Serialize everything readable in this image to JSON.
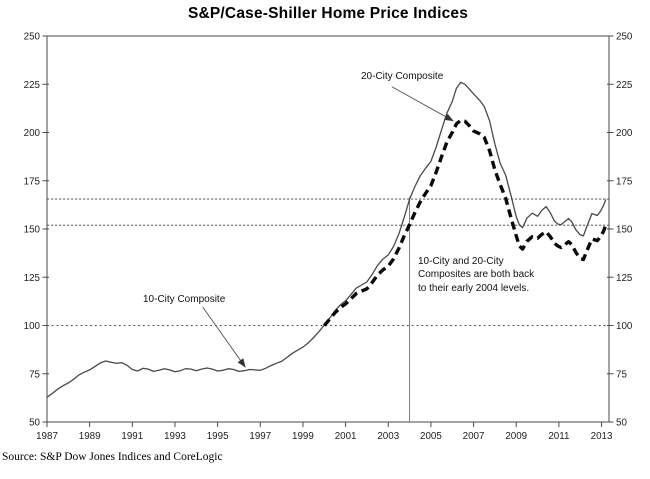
{
  "chart_data": {
    "type": "line",
    "title": "S&P/Case-Shiller Home Price Indices",
    "xlabel": "",
    "ylabel": "",
    "xlim": [
      1987,
      2013.35
    ],
    "ylim": [
      50,
      250
    ],
    "x_ticks": [
      1987,
      1989,
      1991,
      1993,
      1995,
      1997,
      1999,
      2001,
      2003,
      2005,
      2007,
      2009,
      2011,
      2013
    ],
    "y_ticks": [
      50,
      75,
      100,
      125,
      150,
      175,
      200,
      225,
      250
    ],
    "grid": "off",
    "legend": "none (series labeled by arrow annotations)",
    "reference_lines": {
      "horizontal": [
        {
          "y": 100,
          "kind": "dotted"
        },
        {
          "y": 152,
          "kind": "fine-dashed"
        },
        {
          "y": 165.5,
          "kind": "fine-dashed"
        }
      ],
      "vertical": [
        {
          "x": 2004,
          "y_from": 50,
          "y_to": 166.8
        }
      ]
    },
    "series": [
      {
        "name": "10-City Composite",
        "style": "solid",
        "color": "#4a4a4a",
        "width": 1.3,
        "points": [
          [
            1987.0,
            62.8
          ],
          [
            1987.25,
            64.8
          ],
          [
            1987.5,
            67.0
          ],
          [
            1987.75,
            68.8
          ],
          [
            1988.0,
            70.2
          ],
          [
            1988.25,
            72.2
          ],
          [
            1988.5,
            74.4
          ],
          [
            1988.75,
            75.8
          ],
          [
            1989.0,
            77.0
          ],
          [
            1989.25,
            78.8
          ],
          [
            1989.5,
            80.6
          ],
          [
            1989.75,
            81.6
          ],
          [
            1990.0,
            81.0
          ],
          [
            1990.25,
            80.4
          ],
          [
            1990.5,
            80.8
          ],
          [
            1990.75,
            79.4
          ],
          [
            1991.0,
            77.2
          ],
          [
            1991.25,
            76.4
          ],
          [
            1991.5,
            77.8
          ],
          [
            1991.75,
            77.4
          ],
          [
            1992.0,
            76.2
          ],
          [
            1992.25,
            76.8
          ],
          [
            1992.5,
            77.6
          ],
          [
            1992.75,
            77.0
          ],
          [
            1993.0,
            76.0
          ],
          [
            1993.25,
            76.6
          ],
          [
            1993.5,
            77.6
          ],
          [
            1993.75,
            77.4
          ],
          [
            1994.0,
            76.6
          ],
          [
            1994.25,
            77.4
          ],
          [
            1994.5,
            78.0
          ],
          [
            1994.75,
            77.4
          ],
          [
            1995.0,
            76.4
          ],
          [
            1995.25,
            76.8
          ],
          [
            1995.5,
            77.6
          ],
          [
            1995.75,
            77.2
          ],
          [
            1996.0,
            76.2
          ],
          [
            1996.25,
            76.6
          ],
          [
            1996.5,
            77.2
          ],
          [
            1996.75,
            77.0
          ],
          [
            1997.0,
            76.8
          ],
          [
            1997.25,
            77.8
          ],
          [
            1997.5,
            79.2
          ],
          [
            1997.75,
            80.4
          ],
          [
            1998.0,
            81.4
          ],
          [
            1998.25,
            83.4
          ],
          [
            1998.5,
            85.6
          ],
          [
            1998.75,
            87.2
          ],
          [
            1999.0,
            88.8
          ],
          [
            1999.25,
            91.0
          ],
          [
            1999.5,
            93.8
          ],
          [
            1999.75,
            96.8
          ],
          [
            2000.0,
            100.2
          ],
          [
            2000.25,
            103.8
          ],
          [
            2000.5,
            107.6
          ],
          [
            2000.75,
            110.6
          ],
          [
            2001.0,
            112.8
          ],
          [
            2001.25,
            116.0
          ],
          [
            2001.5,
            119.4
          ],
          [
            2001.75,
            121.0
          ],
          [
            2002.0,
            122.6
          ],
          [
            2002.25,
            126.6
          ],
          [
            2002.5,
            131.2
          ],
          [
            2002.75,
            134.4
          ],
          [
            2003.0,
            136.6
          ],
          [
            2003.25,
            141.0
          ],
          [
            2003.5,
            147.5
          ],
          [
            2003.75,
            156.0
          ],
          [
            2004.0,
            165.5
          ],
          [
            2004.25,
            172.0
          ],
          [
            2004.5,
            177.5
          ],
          [
            2004.75,
            181.5
          ],
          [
            2005.0,
            185.0
          ],
          [
            2005.25,
            192.5
          ],
          [
            2005.5,
            201.5
          ],
          [
            2005.75,
            210.0
          ],
          [
            2006.0,
            216.0
          ],
          [
            2006.2,
            223.0
          ],
          [
            2006.4,
            226.0
          ],
          [
            2006.6,
            225.0
          ],
          [
            2006.8,
            222.5
          ],
          [
            2007.0,
            220.0
          ],
          [
            2007.3,
            216.5
          ],
          [
            2007.5,
            213.5
          ],
          [
            2007.75,
            206.0
          ],
          [
            2008.0,
            194.0
          ],
          [
            2008.25,
            184.0
          ],
          [
            2008.5,
            178.0
          ],
          [
            2008.75,
            167.5
          ],
          [
            2009.0,
            156.5
          ],
          [
            2009.15,
            152.0
          ],
          [
            2009.3,
            150.7
          ],
          [
            2009.5,
            155.6
          ],
          [
            2009.75,
            158.2
          ],
          [
            2010.0,
            156.6
          ],
          [
            2010.2,
            159.6
          ],
          [
            2010.4,
            161.6
          ],
          [
            2010.6,
            158.4
          ],
          [
            2010.8,
            154.0
          ],
          [
            2010.95,
            152.6
          ],
          [
            2011.1,
            152.2
          ],
          [
            2011.25,
            153.6
          ],
          [
            2011.45,
            155.4
          ],
          [
            2011.6,
            153.8
          ],
          [
            2011.8,
            149.6
          ],
          [
            2012.0,
            147.0
          ],
          [
            2012.15,
            146.4
          ],
          [
            2012.3,
            151.0
          ],
          [
            2012.55,
            158.0
          ],
          [
            2012.8,
            157.0
          ],
          [
            2012.95,
            159.2
          ],
          [
            2013.1,
            162.4
          ],
          [
            2013.2,
            165.3
          ]
        ]
      },
      {
        "name": "20-City Composite",
        "style": "dashed",
        "color": "#0a0a0a",
        "width": 3.4,
        "points": [
          [
            2000.0,
            100.0
          ],
          [
            2000.25,
            103.2
          ],
          [
            2000.5,
            106.6
          ],
          [
            2000.75,
            109.2
          ],
          [
            2001.0,
            111.2
          ],
          [
            2001.25,
            113.8
          ],
          [
            2001.5,
            116.6
          ],
          [
            2001.75,
            117.8
          ],
          [
            2002.0,
            119.0
          ],
          [
            2002.25,
            122.4
          ],
          [
            2002.5,
            126.2
          ],
          [
            2002.75,
            128.8
          ],
          [
            2003.0,
            130.8
          ],
          [
            2003.25,
            134.5
          ],
          [
            2003.5,
            140.0
          ],
          [
            2003.75,
            146.5
          ],
          [
            2004.0,
            152.3
          ],
          [
            2004.25,
            158.5
          ],
          [
            2004.5,
            164.0
          ],
          [
            2004.75,
            168.5
          ],
          [
            2005.0,
            172.5
          ],
          [
            2005.25,
            179.5
          ],
          [
            2005.5,
            187.5
          ],
          [
            2005.75,
            195.0
          ],
          [
            2006.0,
            200.0
          ],
          [
            2006.2,
            204.5
          ],
          [
            2006.4,
            206.3
          ],
          [
            2006.6,
            205.8
          ],
          [
            2006.8,
            203.5
          ],
          [
            2007.0,
            200.8
          ],
          [
            2007.3,
            199.3
          ],
          [
            2007.5,
            197.5
          ],
          [
            2007.75,
            190.5
          ],
          [
            2008.0,
            180.5
          ],
          [
            2008.25,
            173.0
          ],
          [
            2008.5,
            166.0
          ],
          [
            2008.75,
            156.0
          ],
          [
            2009.0,
            146.5
          ],
          [
            2009.15,
            141.2
          ],
          [
            2009.3,
            139.6
          ],
          [
            2009.5,
            143.6
          ],
          [
            2009.75,
            146.0
          ],
          [
            2010.0,
            145.2
          ],
          [
            2010.2,
            147.2
          ],
          [
            2010.4,
            148.6
          ],
          [
            2010.6,
            146.0
          ],
          [
            2010.8,
            142.6
          ],
          [
            2010.95,
            141.2
          ],
          [
            2011.1,
            140.4
          ],
          [
            2011.25,
            141.6
          ],
          [
            2011.45,
            143.4
          ],
          [
            2011.6,
            142.0
          ],
          [
            2011.8,
            137.8
          ],
          [
            2012.0,
            134.8
          ],
          [
            2012.15,
            134.2
          ],
          [
            2012.3,
            138.4
          ],
          [
            2012.55,
            144.8
          ],
          [
            2012.8,
            144.0
          ],
          [
            2012.95,
            146.0
          ],
          [
            2013.1,
            149.0
          ],
          [
            2013.2,
            152.2
          ]
        ]
      }
    ],
    "annotations": [
      {
        "text": "20-City Composite",
        "arrow": {
          "x1": 2003.17,
          "y1": 223.7,
          "x2": 2006.05,
          "y2": 206.0
        }
      },
      {
        "text": "10-City Composite",
        "arrow": {
          "x1": 1994.3,
          "y1": 109.6,
          "x2": 1996.3,
          "y2": 78.4
        }
      },
      {
        "text": "10-City and 20-City\nComposites are both back\nto their early 2004 levels."
      }
    ]
  },
  "source": "Source: S&P Dow Jones Indices and CoreLogic",
  "colors": {
    "background": "#ffffff",
    "axis": "#4a4a4a",
    "tick_text": "#222222",
    "reference_line": "#444444",
    "vertical_line": "#707070",
    "solid_series": "#4a4a4a",
    "dashed_series": "#0a0a0a"
  }
}
